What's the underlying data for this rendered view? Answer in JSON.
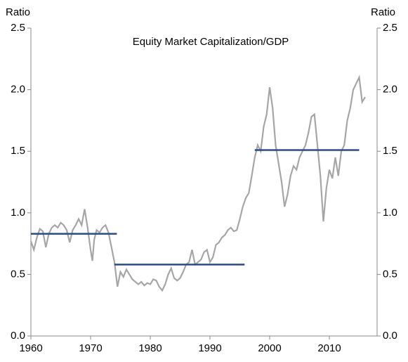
{
  "chart_data": {
    "type": "line",
    "title": "Equity Market Capitalization/GDP",
    "y_label": "Ratio",
    "y2_label": "Ratio",
    "xlim": [
      1960,
      2018
    ],
    "xticks": [
      1960,
      1970,
      1980,
      1990,
      2000,
      2010
    ],
    "ylim": [
      0,
      2.5
    ],
    "yticks": [
      {
        "value": 0,
        "label": "0.0"
      },
      {
        "value": 0.5,
        "label": "0.5"
      },
      {
        "value": 1,
        "label": "1.0"
      },
      {
        "value": 1.5,
        "label": "1.5"
      },
      {
        "value": 2,
        "label": "2.0"
      },
      {
        "value": 2.5,
        "label": "2.5"
      }
    ],
    "y2lim": [
      0,
      2.5
    ],
    "y2ticks": [
      {
        "value": 0,
        "label": "0.0"
      },
      {
        "value": 0.5,
        "label": "0.5"
      },
      {
        "value": 1,
        "label": "1.0"
      },
      {
        "value": 1.5,
        "label": "1.5"
      },
      {
        "value": 2,
        "label": "2.0"
      },
      {
        "value": 2.5,
        "label": "2.5"
      }
    ],
    "series": [
      {
        "color": "#a6a6a6",
        "x": [
          1960,
          1960.5,
          1961,
          1961.5,
          1962,
          1962.5,
          1963,
          1963.5,
          1964,
          1964.5,
          1965,
          1965.5,
          1966,
          1966.5,
          1967,
          1967.5,
          1968,
          1968.5,
          1969,
          1969.5,
          1970,
          1970.3,
          1970.6,
          1971,
          1971.5,
          1972,
          1972.5,
          1973,
          1973.5,
          1974,
          1974.5,
          1975,
          1975.5,
          1976,
          1976.5,
          1977,
          1977.5,
          1978,
          1978.5,
          1979,
          1979.5,
          1980,
          1980.5,
          1981,
          1981.5,
          1982,
          1982.5,
          1983,
          1983.5,
          1984,
          1984.5,
          1985,
          1985.5,
          1986,
          1986.5,
          1987,
          1987.5,
          1988,
          1988.5,
          1989,
          1989.5,
          1990,
          1990.5,
          1991,
          1991.5,
          1992,
          1992.5,
          1993,
          1993.5,
          1994,
          1994.5,
          1995,
          1995.5,
          1996,
          1996.5,
          1997,
          1997.5,
          1998,
          1998.5,
          1999,
          1999.5,
          2000,
          2000.5,
          2001,
          2001.5,
          2002,
          2002.5,
          2003,
          2003.5,
          2004,
          2004.5,
          2005,
          2005.5,
          2006,
          2006.5,
          2007,
          2007.5,
          2008,
          2008.5,
          2009,
          2009.5,
          2010,
          2010.5,
          2011,
          2011.5,
          2012,
          2012.5,
          2013,
          2013.5,
          2014,
          2014.5,
          2015,
          2015.5,
          2016
        ],
        "values": [
          0.77,
          0.7,
          0.8,
          0.87,
          0.85,
          0.72,
          0.83,
          0.88,
          0.9,
          0.88,
          0.92,
          0.9,
          0.86,
          0.76,
          0.86,
          0.9,
          0.95,
          0.9,
          1.03,
          0.88,
          0.7,
          0.61,
          0.78,
          0.86,
          0.84,
          0.88,
          0.9,
          0.84,
          0.72,
          0.6,
          0.4,
          0.52,
          0.48,
          0.54,
          0.5,
          0.46,
          0.44,
          0.42,
          0.44,
          0.41,
          0.43,
          0.42,
          0.46,
          0.45,
          0.4,
          0.37,
          0.42,
          0.5,
          0.55,
          0.47,
          0.45,
          0.47,
          0.52,
          0.58,
          0.6,
          0.7,
          0.58,
          0.6,
          0.62,
          0.68,
          0.7,
          0.6,
          0.64,
          0.74,
          0.76,
          0.8,
          0.82,
          0.86,
          0.88,
          0.85,
          0.86,
          0.95,
          1.05,
          1.12,
          1.16,
          1.3,
          1.45,
          1.55,
          1.5,
          1.7,
          1.8,
          2.02,
          1.85,
          1.55,
          1.4,
          1.25,
          1.05,
          1.15,
          1.3,
          1.38,
          1.35,
          1.45,
          1.5,
          1.55,
          1.65,
          1.78,
          1.8,
          1.55,
          1.3,
          0.93,
          1.2,
          1.35,
          1.28,
          1.45,
          1.3,
          1.5,
          1.55,
          1.75,
          1.85,
          2.0,
          2.05,
          2.1,
          1.9,
          1.94
        ]
      },
      {
        "color": "#2b4b8c",
        "x": [
          1960,
          1974.4
        ],
        "values": [
          0.83,
          0.83
        ]
      },
      {
        "color": "#2b4b8c",
        "x": [
          1974,
          1995.8
        ],
        "values": [
          0.58,
          0.58
        ]
      },
      {
        "color": "#2b4b8c",
        "x": [
          1997.5,
          2015
        ],
        "values": [
          1.51,
          1.51
        ]
      }
    ]
  }
}
